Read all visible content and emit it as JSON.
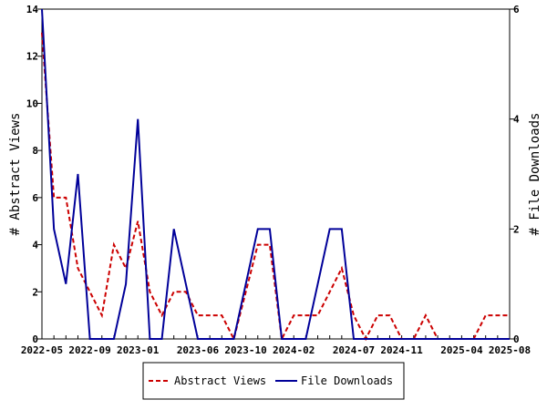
{
  "chart_data": {
    "type": "line",
    "title": "",
    "x_tick_labels": [
      "2022-05",
      "2022-09",
      "2023-01",
      "2023-06",
      "2023-10",
      "2024-02",
      "2024-07",
      "2024-11",
      "2025-04",
      "2025-08"
    ],
    "x_start": "2022-05",
    "x_end": "2025-08",
    "ylabel_left": "# Abstract Views",
    "ylabel_right": "# File Downloads",
    "ylim_left": [
      0,
      14
    ],
    "ylim_right": [
      0,
      6
    ],
    "yticks_left": [
      "0",
      "2",
      "4",
      "6",
      "8",
      "10",
      "12",
      "14"
    ],
    "yticks_right": [
      "0",
      "2",
      "4",
      "6"
    ],
    "grid": false,
    "legend_position": "bottom",
    "series": [
      {
        "name": "Abstract Views",
        "axis": "left",
        "color": "#cc0000",
        "style": "dashed",
        "x": [
          "2022-05",
          "2022-06",
          "2022-07",
          "2022-08",
          "2022-09",
          "2022-10",
          "2022-11",
          "2022-12",
          "2023-01",
          "2023-02",
          "2023-03",
          "2023-04",
          "2023-05",
          "2023-06",
          "2023-07",
          "2023-08",
          "2023-09",
          "2023-10",
          "2023-11",
          "2023-12",
          "2024-01",
          "2024-02",
          "2024-03",
          "2024-04",
          "2024-05",
          "2024-06",
          "2024-07",
          "2024-08",
          "2024-09",
          "2024-10",
          "2024-11",
          "2024-12",
          "2025-01",
          "2025-02",
          "2025-03",
          "2025-04",
          "2025-05",
          "2025-06",
          "2025-07",
          "2025-08"
        ],
        "values": [
          13,
          6,
          6,
          3,
          2,
          1,
          4,
          3,
          5,
          2,
          1,
          2,
          2,
          1,
          1,
          1,
          0,
          2,
          4,
          4,
          0,
          1,
          1,
          1,
          2,
          3,
          1,
          0,
          1,
          1,
          0,
          0,
          1,
          0,
          0,
          0,
          0,
          1,
          1,
          1
        ]
      },
      {
        "name": "File Downloads",
        "axis": "right",
        "color": "#000099",
        "style": "solid",
        "x": [
          "2022-05",
          "2022-06",
          "2022-07",
          "2022-08",
          "2022-09",
          "2022-10",
          "2022-11",
          "2022-12",
          "2023-01",
          "2023-02",
          "2023-03",
          "2023-04",
          "2023-05",
          "2023-06",
          "2023-07",
          "2023-08",
          "2023-09",
          "2023-10",
          "2023-11",
          "2023-12",
          "2024-01",
          "2024-02",
          "2024-03",
          "2024-04",
          "2024-05",
          "2024-06",
          "2024-07",
          "2024-08",
          "2024-09",
          "2024-10",
          "2024-11",
          "2024-12",
          "2025-01",
          "2025-02",
          "2025-03",
          "2025-04",
          "2025-05",
          "2025-06",
          "2025-07",
          "2025-08"
        ],
        "values": [
          6,
          2,
          1,
          3,
          0,
          0,
          0,
          1,
          4,
          0,
          0,
          2,
          1,
          0,
          0,
          0,
          0,
          1,
          2,
          2,
          0,
          0,
          0,
          1,
          2,
          2,
          0,
          0,
          0,
          0,
          0,
          0,
          0,
          0,
          0,
          0,
          0,
          0,
          0,
          0
        ]
      }
    ]
  }
}
